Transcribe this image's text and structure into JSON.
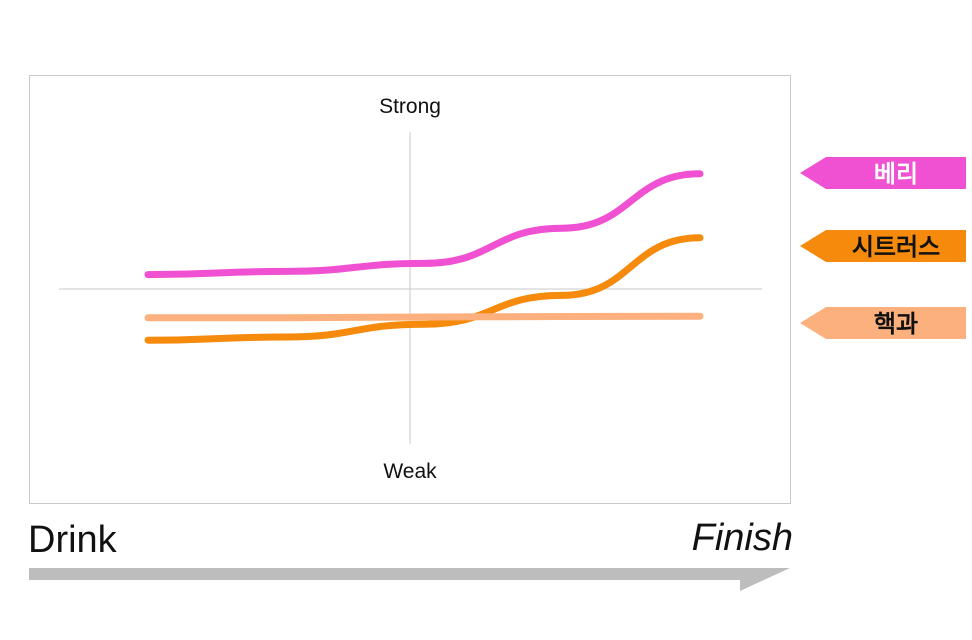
{
  "chart_data": {
    "type": "line",
    "axes": {
      "y_top_label": "Strong",
      "y_bottom_label": "Weak",
      "x_start_label": "Drink",
      "x_end_label": "Finish"
    },
    "x_range": [
      0,
      1
    ],
    "y_range": [
      -1,
      1
    ],
    "series": [
      {
        "name": "베리",
        "color": "#f050d2",
        "text_color": "#ffffff",
        "points": [
          [
            0,
            0.09
          ],
          [
            0.25,
            0.11
          ],
          [
            0.5,
            0.16
          ],
          [
            0.75,
            0.38
          ],
          [
            1,
            0.72
          ]
        ]
      },
      {
        "name": "시트러스",
        "color": "#f58a0c",
        "text_color": "#111111",
        "points": [
          [
            0,
            -0.32
          ],
          [
            0.25,
            -0.3
          ],
          [
            0.5,
            -0.22
          ],
          [
            0.75,
            -0.04
          ],
          [
            1,
            0.32
          ]
        ]
      },
      {
        "name": "핵과",
        "color": "#fbb07e",
        "text_color": "#111111",
        "points": [
          [
            0,
            -0.18
          ],
          [
            0.25,
            -0.18
          ],
          [
            0.5,
            -0.175
          ],
          [
            0.75,
            -0.172
          ],
          [
            1,
            -0.17
          ]
        ]
      }
    ],
    "grid": false,
    "legend_position": "right"
  }
}
